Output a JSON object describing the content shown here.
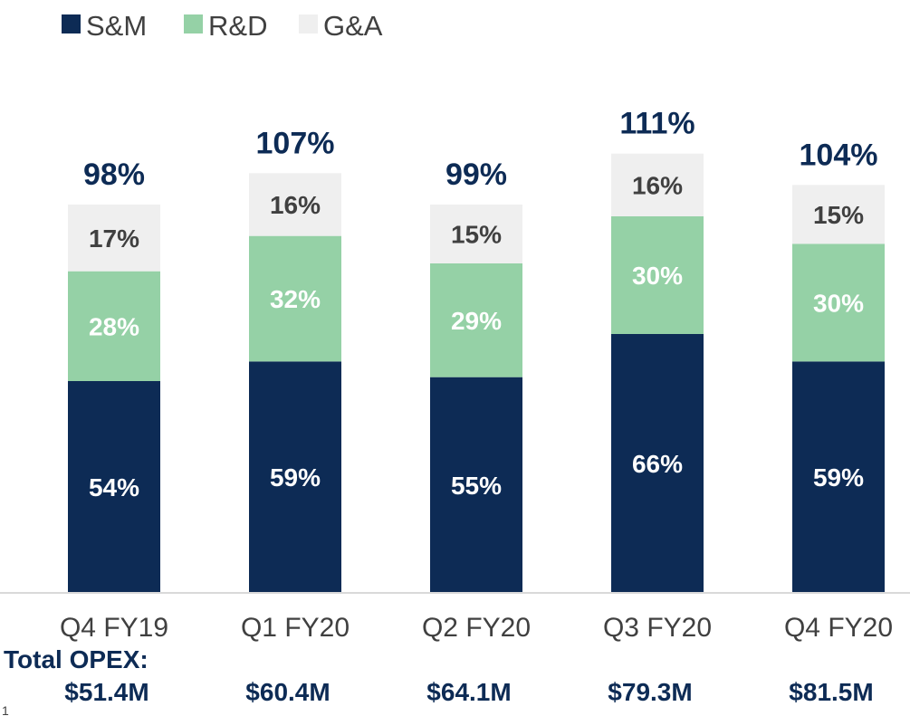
{
  "chart_data": {
    "type": "bar",
    "stacked": true,
    "categories": [
      "Q4 FY19",
      "Q1 FY20",
      "Q2 FY20",
      "Q3 FY20",
      "Q4 FY20"
    ],
    "series": [
      {
        "name": "S&M",
        "color": "#0d2b55",
        "label_color": "#ffffff",
        "values": [
          54,
          59,
          55,
          66,
          59
        ],
        "labels": [
          "54%",
          "59%",
          "55%",
          "66%",
          "59%"
        ]
      },
      {
        "name": "R&D",
        "color": "#95d1a6",
        "label_color": "#ffffff",
        "values": [
          28,
          32,
          29,
          30,
          30
        ],
        "labels": [
          "28%",
          "32%",
          "29%",
          "30%",
          "30%"
        ]
      },
      {
        "name": "G&A",
        "color": "#efefef",
        "label_color": "#404040",
        "values": [
          17,
          16,
          15,
          16,
          15
        ],
        "labels": [
          "17%",
          "16%",
          "15%",
          "16%",
          "15%"
        ]
      }
    ],
    "totals": [
      98,
      107,
      99,
      111,
      104
    ],
    "total_labels": [
      "98%",
      "107%",
      "99%",
      "111%",
      "104%"
    ],
    "ylim": [
      0,
      111
    ],
    "grid": false,
    "legend_position": "top-left",
    "opex": {
      "title": "Total OPEX:",
      "values": [
        "$51.4M",
        "$60.4M",
        "$64.1M",
        "$79.3M",
        "$81.5M"
      ]
    },
    "footnote": "1"
  }
}
